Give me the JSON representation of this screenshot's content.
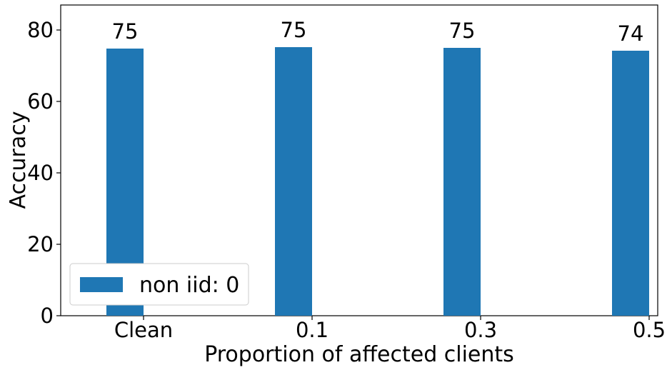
{
  "chart_data": {
    "type": "bar",
    "title": "",
    "xlabel": "Proportion of affected clients",
    "ylabel": "Accuracy",
    "categories": [
      "Clean",
      "0.1",
      "0.3",
      "0.5"
    ],
    "series": [
      {
        "name": "non iid: 0",
        "values": [
          74.8,
          75.2,
          75.0,
          74.2
        ],
        "data_labels": [
          "75",
          "75",
          "75",
          "74"
        ],
        "color": "#1f77b4"
      }
    ],
    "ylim": [
      0,
      87
    ],
    "yticks": [
      0,
      20,
      40,
      60,
      80
    ],
    "ytick_labels": [
      "0",
      "20",
      "40",
      "60",
      "80"
    ],
    "grid": false,
    "legend_position": "lower-left"
  }
}
